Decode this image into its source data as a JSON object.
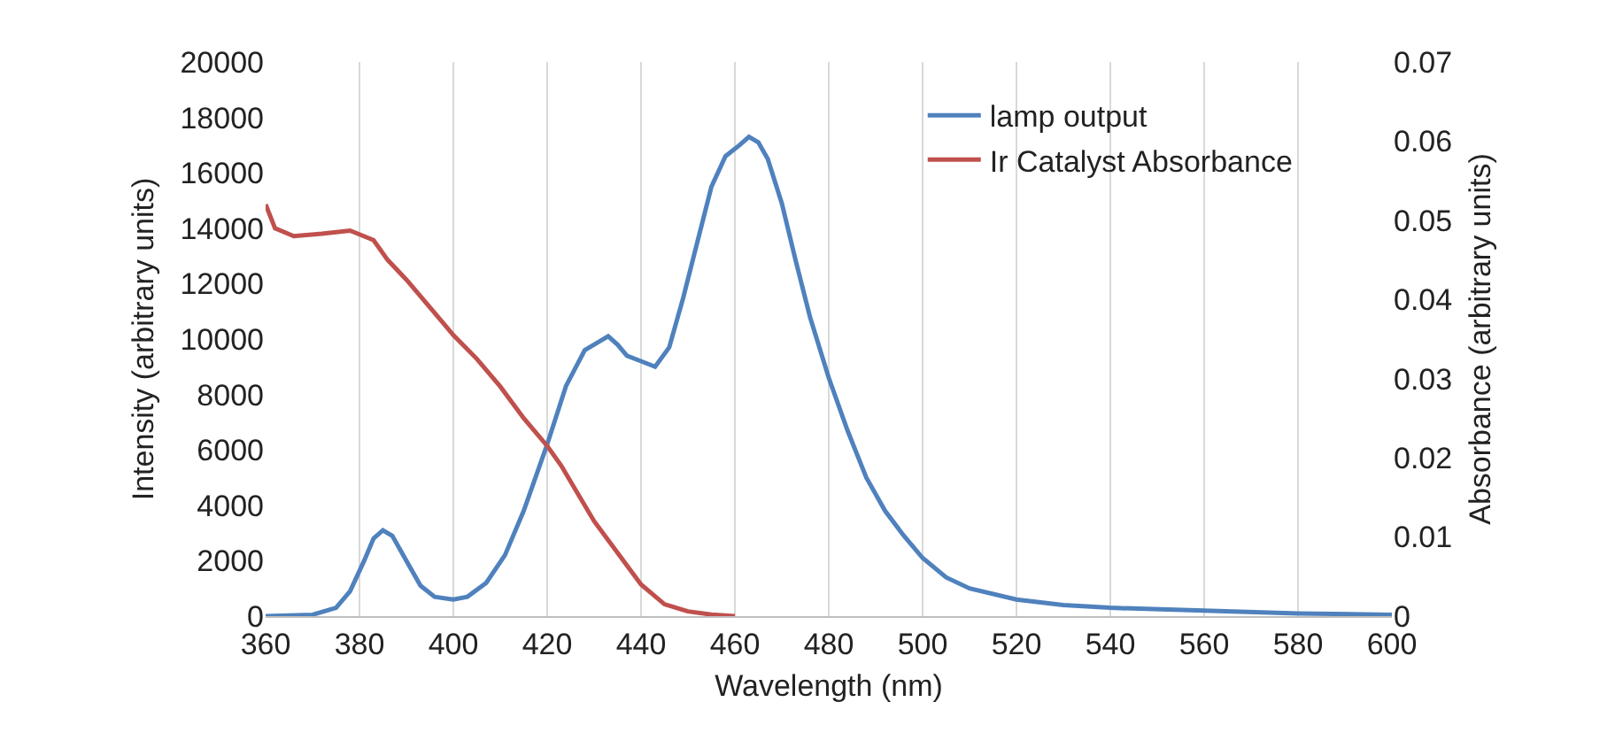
{
  "chart_data": {
    "type": "line",
    "xlabel": "Wavelength (nm)",
    "ylabel": "Intensity (arbitrary units)",
    "y2label": "Absorbance (arbitrary units)",
    "xlim": [
      360,
      600
    ],
    "xticks": [
      360,
      380,
      400,
      420,
      440,
      460,
      480,
      500,
      520,
      540,
      560,
      580,
      600
    ],
    "ylim": [
      0,
      20000
    ],
    "yticks": [
      0,
      2000,
      4000,
      6000,
      8000,
      10000,
      12000,
      14000,
      16000,
      18000,
      20000
    ],
    "y2lim": [
      0,
      0.07
    ],
    "y2ticks": [
      0,
      0.01,
      0.02,
      0.03,
      0.04,
      0.05,
      0.06,
      0.07
    ],
    "grid": "x",
    "legend": "top right",
    "marker": "none",
    "line_style": "solid",
    "series": [
      {
        "name": "lamp output",
        "color": "#4f81bd",
        "x": [
          360,
          370,
          375,
          378,
          381,
          383,
          385,
          387,
          390,
          393,
          396,
          400,
          403,
          407,
          411,
          415,
          420,
          424,
          428,
          431,
          433,
          435,
          437,
          440,
          443,
          446,
          449,
          452,
          455,
          458,
          461,
          463,
          465,
          467,
          470,
          473,
          476,
          480,
          484,
          488,
          492,
          496,
          500,
          505,
          510,
          520,
          530,
          540,
          560,
          580,
          600
        ],
        "values": [
          0,
          50,
          300,
          900,
          2000,
          2800,
          3100,
          2900,
          2000,
          1100,
          700,
          600,
          700,
          1200,
          2200,
          3800,
          6200,
          8300,
          9600,
          9900,
          10100,
          9800,
          9400,
          9200,
          9000,
          9700,
          11500,
          13500,
          15500,
          16600,
          17000,
          17300,
          17100,
          16500,
          14900,
          12800,
          10800,
          8600,
          6700,
          5000,
          3800,
          2900,
          2100,
          1400,
          1000,
          600,
          400,
          300,
          200,
          100,
          50
        ]
      },
      {
        "name": "Ir Catalyst Absorbance",
        "color": "#c0504d",
        "axis": "y2",
        "x": [
          360,
          362,
          366,
          372,
          378,
          383,
          386,
          390,
          395,
          400,
          405,
          410,
          415,
          420,
          423,
          426,
          430,
          435,
          440,
          445,
          450,
          455,
          460
        ],
        "values": [
          0.052,
          0.049,
          0.048,
          0.0483,
          0.0487,
          0.0475,
          0.045,
          0.0425,
          0.039,
          0.0355,
          0.0325,
          0.029,
          0.025,
          0.0215,
          0.019,
          0.016,
          0.012,
          0.008,
          0.004,
          0.0015,
          0.0006,
          0.0002,
          0
        ]
      }
    ]
  }
}
